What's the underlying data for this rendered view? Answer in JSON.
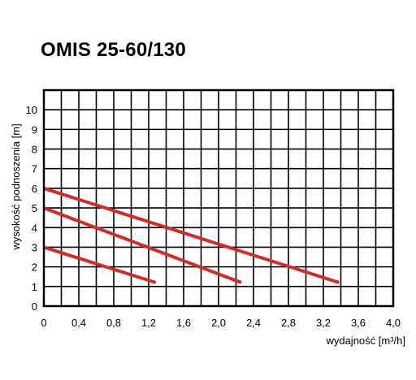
{
  "chart_data": {
    "type": "line",
    "title": "OMIS 25-60/130",
    "xlabel": "wydajność [m³/h]",
    "ylabel": "wysokość podnoszenia [m]",
    "xlim": [
      0,
      4.0
    ],
    "ylim": [
      0,
      11
    ],
    "x_ticks": [
      "0",
      "0,4",
      "0,8",
      "1,2",
      "1,6",
      "2,0",
      "2,4",
      "2,8",
      "3,2",
      "3,6",
      "4,0"
    ],
    "y_ticks": [
      "0",
      "1",
      "2",
      "3",
      "4",
      "5",
      "6",
      "7",
      "8",
      "9",
      "10"
    ],
    "grid": true,
    "series_color": "#d42a2a",
    "series": [
      {
        "x": [
          0,
          1.28
        ],
        "y": [
          3,
          1.2
        ]
      },
      {
        "x": [
          0,
          2.26
        ],
        "y": [
          5,
          1.2
        ]
      },
      {
        "x": [
          0,
          3.38
        ],
        "y": [
          6,
          1.2
        ]
      }
    ]
  }
}
